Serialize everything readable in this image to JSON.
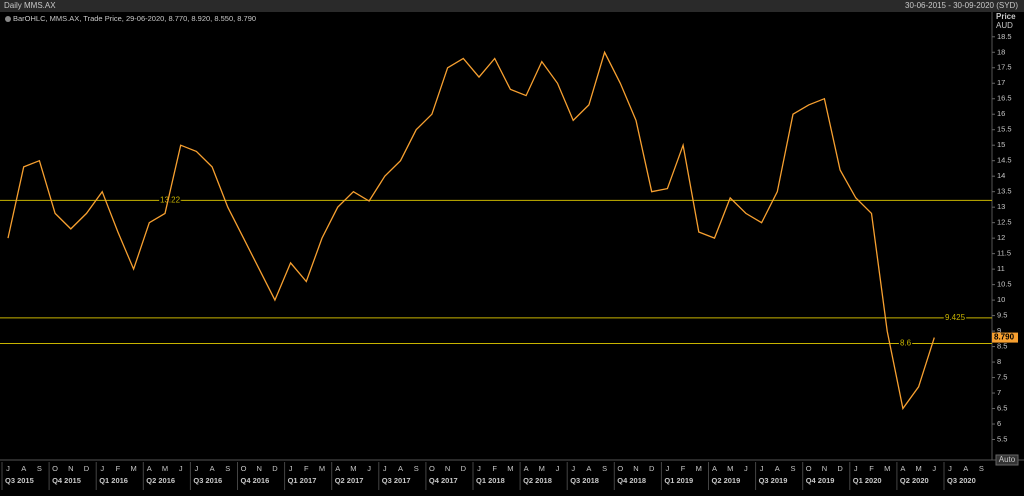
{
  "header": {
    "title": "Daily MMS.AX",
    "range": "30-06-2015 - 30-09-2020 (SYD)"
  },
  "chart_data": {
    "type": "line",
    "legend": "BarOHLC, MMS.AX, Trade Price, 29-06-2020, 8.770, 8.920, 8.550, 8.790",
    "y_axis_label": "Price",
    "y_axis_unit": "AUD",
    "categories": [
      "J",
      "A",
      "S",
      "O",
      "N",
      "D",
      "J",
      "F",
      "M",
      "A",
      "M",
      "J",
      "J",
      "A",
      "S",
      "O",
      "N",
      "D",
      "J",
      "F",
      "M",
      "A",
      "M",
      "J",
      "J",
      "A",
      "S",
      "O",
      "N",
      "D",
      "J",
      "F",
      "M",
      "A",
      "M",
      "J",
      "J",
      "A",
      "S",
      "O",
      "N",
      "D",
      "J",
      "F",
      "M",
      "A",
      "M",
      "J",
      "J",
      "A",
      "S",
      "O",
      "N",
      "D",
      "J",
      "F",
      "M",
      "A",
      "M",
      "J",
      "J",
      "A",
      "S"
    ],
    "quarters": [
      "Q3 2015",
      "Q4 2015",
      "Q1 2016",
      "Q2 2016",
      "Q3 2016",
      "Q4 2016",
      "Q1 2017",
      "Q2 2017",
      "Q3 2017",
      "Q4 2017",
      "Q1 2018",
      "Q2 2018",
      "Q3 2018",
      "Q4 2018",
      "Q1 2019",
      "Q2 2019",
      "Q3 2019",
      "Q4 2019",
      "Q1 2020",
      "Q2 2020",
      "Q3 2020"
    ],
    "series": [
      {
        "name": "MMS.AX",
        "color": "#f7a030",
        "values": [
          12.0,
          14.3,
          14.5,
          12.8,
          12.3,
          12.8,
          13.5,
          12.2,
          11.0,
          12.5,
          12.8,
          15.0,
          14.8,
          14.3,
          13.0,
          12.0,
          11.0,
          10.0,
          11.2,
          10.6,
          12.0,
          13.0,
          13.5,
          13.2,
          14.0,
          14.5,
          15.5,
          16.0,
          17.5,
          17.8,
          17.2,
          17.8,
          16.8,
          16.6,
          17.7,
          17.0,
          15.8,
          16.3,
          18.0,
          17.0,
          15.8,
          13.5,
          13.6,
          15.0,
          12.2,
          12.0,
          13.3,
          12.8,
          12.5,
          13.5,
          16.0,
          16.3,
          16.5,
          14.2,
          13.3,
          12.8,
          9.0,
          6.5,
          7.2,
          8.79,
          null,
          null,
          null
        ]
      }
    ],
    "levels": [
      13.22,
      9.425,
      8.6
    ],
    "level_color": "#c8b400",
    "last_price": {
      "value": 8.79,
      "label": "8.790"
    },
    "ylim": [
      5.0,
      19.3
    ],
    "yticks": [
      5.5,
      6,
      6.5,
      7,
      7.5,
      8,
      8.5,
      9,
      9.5,
      10,
      10.5,
      11,
      11.5,
      12,
      12.5,
      13,
      13.5,
      14,
      14.5,
      15,
      15.5,
      16,
      16.5,
      17,
      17.5,
      18,
      18.5
    ],
    "auto_button": "Auto"
  }
}
